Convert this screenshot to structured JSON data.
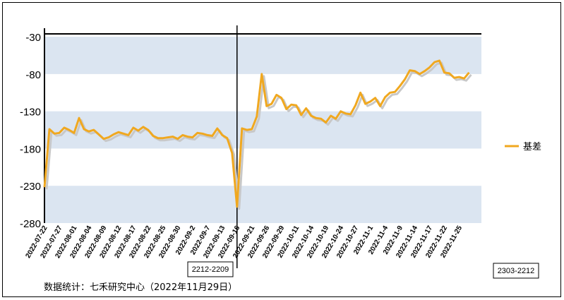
{
  "chart_data": {
    "type": "line",
    "title": "",
    "xlabel": "",
    "ylabel": "",
    "ylim": [
      -280,
      20
    ],
    "yticks": [
      -30,
      -80,
      -130,
      -180,
      -230,
      -280
    ],
    "grid": "horizontal bands",
    "legend_position": "right",
    "series": [
      {
        "name": "基差",
        "color": "#f0a820",
        "x": [
          "2022-07-22",
          "2022-07-25",
          "2022-07-26",
          "2022-07-27",
          "2022-07-28",
          "2022-07-29",
          "2022-08-01",
          "2022-08-02",
          "2022-08-03",
          "2022-08-04",
          "2022-08-05",
          "2022-08-08",
          "2022-08-09",
          "2022-08-10",
          "2022-08-11",
          "2022-08-12",
          "2022-08-15",
          "2022-08-16",
          "2022-08-17",
          "2022-08-18",
          "2022-08-19",
          "2022-08-22",
          "2022-08-23",
          "2022-08-24",
          "2022-08-25",
          "2022-08-26",
          "2022-08-29",
          "2022-08-30",
          "2022-08-31",
          "2022-09-01",
          "2022-09-02",
          "2022-09-05",
          "2022-09-06",
          "2022-09-07",
          "2022-09-08",
          "2022-09-09",
          "2022-09-13",
          "2022-09-14",
          "2022-09-15",
          "2022-09-16",
          "2022-09-19",
          "2022-09-20",
          "2022-09-21",
          "2022-09-22",
          "2022-09-23",
          "2022-09-26",
          "2022-09-27",
          "2022-09-28",
          "2022-09-29",
          "2022-09-30",
          "2022-10-10",
          "2022-10-11",
          "2022-10-12",
          "2022-10-13",
          "2022-10-14",
          "2022-10-17",
          "2022-10-18",
          "2022-10-19",
          "2022-10-20",
          "2022-10-21",
          "2022-10-24",
          "2022-10-25",
          "2022-10-26",
          "2022-10-27",
          "2022-10-28",
          "2022-10-31",
          "2022-11-01",
          "2022-11-02",
          "2022-11-03",
          "2022-11-04",
          "2022-11-07",
          "2022-11-08",
          "2022-11-09",
          "2022-11-10",
          "2022-11-11",
          "2022-11-14",
          "2022-11-15",
          "2022-11-16",
          "2022-11-17",
          "2022-11-18",
          "2022-11-21",
          "2022-11-22",
          "2022-11-23",
          "2022-11-24",
          "2022-11-25",
          "2022-11-28",
          "2022-11-29"
        ],
        "values": [
          -232,
          -154,
          -160,
          -159,
          -152,
          -155,
          -159,
          -139,
          -154,
          -157,
          -155,
          -161,
          -167,
          -165,
          -161,
          -158,
          -160,
          -162,
          -152,
          -156,
          -151,
          -155,
          -163,
          -166,
          -166,
          -165,
          -164,
          -167,
          -162,
          -164,
          -165,
          -159,
          -160,
          -162,
          -163,
          -153,
          -162,
          -166,
          -186,
          -258,
          -153,
          -155,
          -154,
          -137,
          -80,
          -123,
          -120,
          -108,
          -112,
          -127,
          -121,
          -122,
          -135,
          -126,
          -136,
          -139,
          -140,
          -145,
          -136,
          -140,
          -130,
          -133,
          -134,
          -122,
          -105,
          -120,
          -117,
          -112,
          -123,
          -111,
          -105,
          -104,
          -96,
          -87,
          -75,
          -76,
          -80,
          -76,
          -71,
          -64,
          -62,
          -78,
          -79,
          -85,
          -84,
          -86,
          -78
        ]
      }
    ],
    "xtick_labels": [
      "2022-07-22",
      "2022-07-27",
      "2022-08-01",
      "2022-08-04",
      "2022-08-09",
      "2022-08-12",
      "2022-08-17",
      "2022-08-22",
      "2022-08-25",
      "2022-08-30",
      "2022-09-2",
      "2022-09-7",
      "2022-09-13",
      "2022-09-16",
      "2022-09-21",
      "2022-09-26",
      "2022-09-29",
      "2022-10-11",
      "2022-10-14",
      "2022-10-19",
      "2022-10-24",
      "2022-10-27",
      "2022-11-1",
      "2022-11-4",
      "2022-11-9",
      "2022-11-14",
      "2022-11-17",
      "2022-11-22",
      "2022-11-25"
    ],
    "xtick_index": [
      0,
      3,
      6,
      9,
      12,
      15,
      18,
      21,
      24,
      27,
      30,
      33,
      36,
      39,
      42,
      45,
      48,
      51,
      54,
      57,
      60,
      63,
      66,
      69,
      72,
      75,
      78,
      81,
      84
    ],
    "annotations": {
      "divider_index": 39,
      "left_contract": "2212-2209",
      "right_contract": "2303-2212"
    }
  },
  "source_note": "数据统计：七禾研究中心（2022年11月29日）"
}
